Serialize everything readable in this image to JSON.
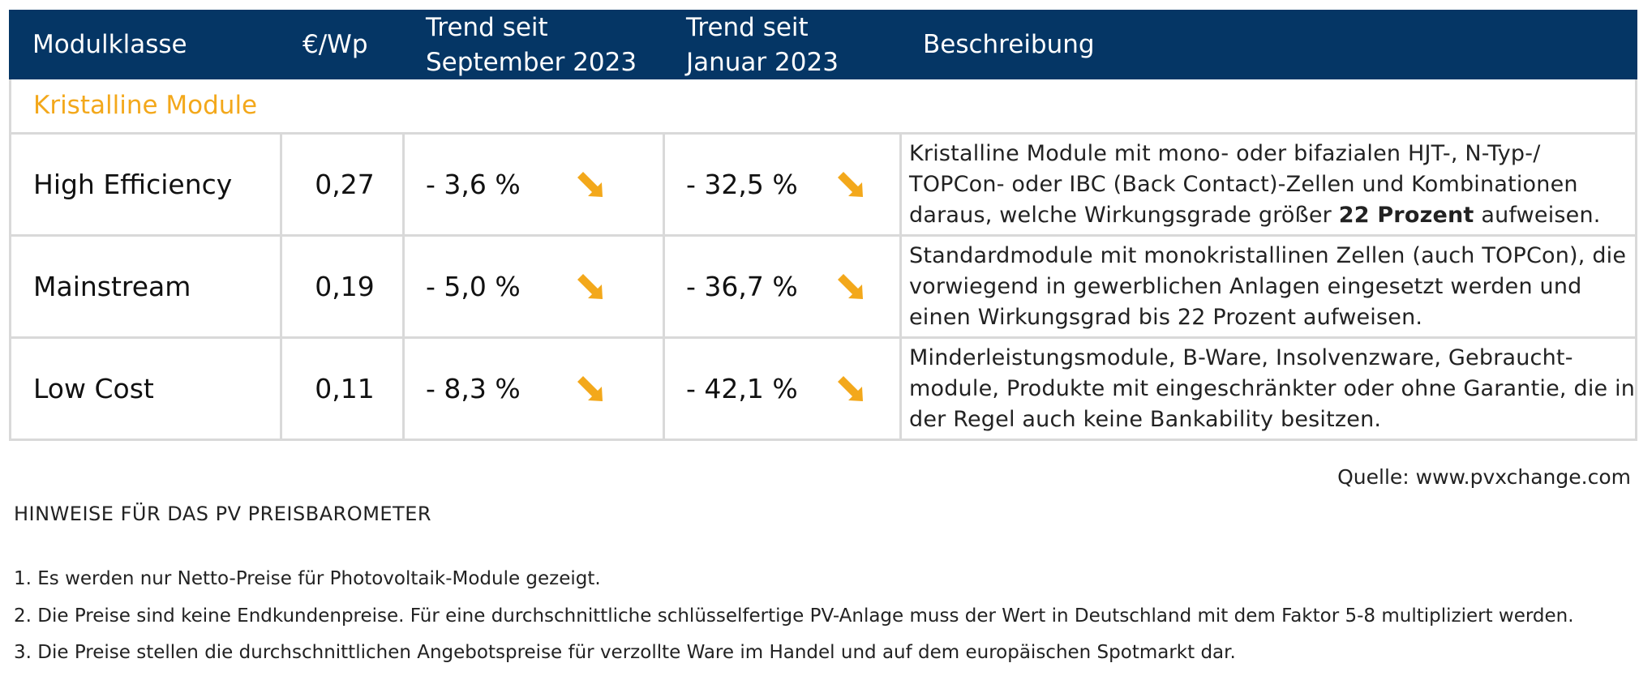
{
  "header": {
    "col_module": "Modulklasse",
    "col_price": "€/Wp",
    "col_trend1_line1": "Trend seit",
    "col_trend1_line2": "September 2023",
    "col_trend2_line1": "Trend seit",
    "col_trend2_line2": "Januar 2023",
    "col_desc": "Beschreibung"
  },
  "section_title": "Kristalline Module",
  "rows": [
    {
      "name": "High Efficiency",
      "price": "0,27",
      "trend_sep": "- 3,6 %",
      "trend_jan": "- 32,5 %",
      "desc_a": "Kristalline Module mit mono- oder bifazialen HJT-, N-Typ-/ TOPCon- oder IBC (Back Contact)-Zellen und Kombinationen daraus, welche Wirkungsgrade größer ",
      "desc_bold": "22 Prozent",
      "desc_b": " aufweisen."
    },
    {
      "name": "Mainstream",
      "price": "0,19",
      "trend_sep": "- 5,0 %",
      "trend_jan": "- 36,7 %",
      "desc": "Standardmodule mit monokristallinen Zellen (auch TOPCon), die vorwiegend in gewerblichen Anlagen eingesetzt werden und einen Wirkungsgrad bis 22 Prozent aufweisen."
    },
    {
      "name": "Low Cost",
      "price": "0,11",
      "trend_sep": "- 8,3 %",
      "trend_jan": "- 42,1 %",
      "desc": "Minderleistungsmodule, B-Ware, Insolvenzware, Gebraucht-module, Produkte mit eingeschränkter oder ohne Garantie, die in der Regel auch keine Bankability besitzen."
    }
  ],
  "arrow_icon": "arrow-down-right-icon",
  "colors": {
    "header_bg": "#053665",
    "accent": "#f3a81b",
    "grid": "#d9d9d9"
  },
  "source": "Quelle: www.pvxchange.com",
  "notes_title": "HINWEISE FÜR DAS PV PREISBAROMETER",
  "notes": [
    "1.  Es werden nur Netto-Preise für Photovoltaik-Module gezeigt.",
    "2. Die Preise sind keine Endkundenpreise. Für eine durchschnittliche schlüsselfertige PV-Anlage muss der Wert in Deutschland mit dem Faktor 5-8 multipliziert werden.",
    "3. Die Preise stellen die durchschnittlichen Angebotspreise für verzollte Ware im Handel und auf dem europäischen Spotmarkt dar."
  ]
}
